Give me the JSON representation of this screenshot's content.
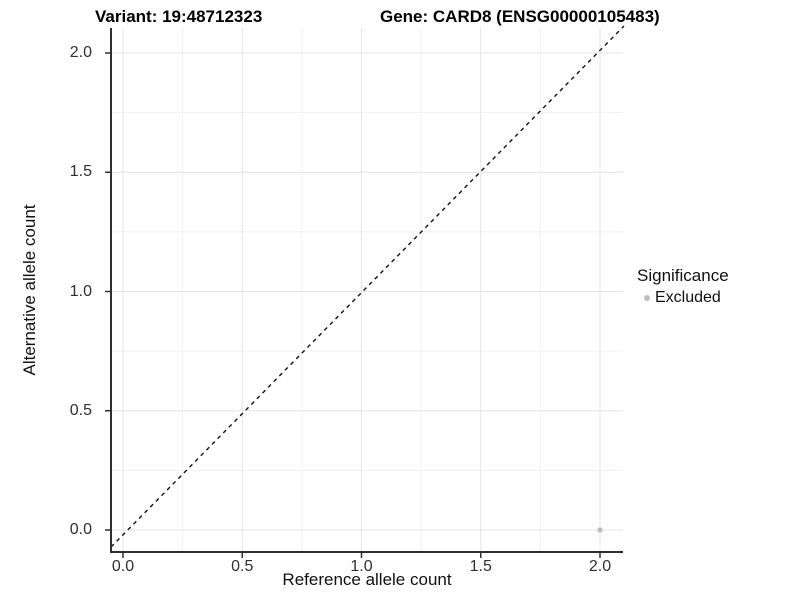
{
  "header": {
    "variant_title": "Variant: 19:48712323",
    "gene_title": "Gene: CARD8 (ENSG00000105483)"
  },
  "axes": {
    "x": {
      "label": "Reference allele count",
      "tick_labels": [
        "0.0",
        "0.5",
        "1.0",
        "1.5",
        "2.0"
      ]
    },
    "y": {
      "label": "Alternative allele count",
      "tick_labels": [
        "0.0",
        "0.5",
        "1.0",
        "1.5",
        "2.0"
      ]
    }
  },
  "legend": {
    "title": "Significance",
    "items": [
      {
        "label": "Excluded",
        "color": "#bdbdbd"
      }
    ]
  },
  "colors": {
    "grid_major": "#e4e4e4",
    "grid_minor": "#f1f1f1",
    "axis_line": "#2f2f2f",
    "tick_mark": "#2f2f2f",
    "reference_line": "#111111",
    "point": "#bdbdbd",
    "background": "#ffffff"
  },
  "chart_data": {
    "type": "scatter",
    "title": "Variant: 19:48712323   Gene: CARD8 (ENSG00000105483)",
    "xlabel": "Reference allele count",
    "ylabel": "Alternative allele count",
    "xlim": [
      -0.05,
      2.1
    ],
    "ylim": [
      -0.1,
      2.1
    ],
    "x_ticks": [
      0.0,
      0.5,
      1.0,
      1.5,
      2.0
    ],
    "y_ticks": [
      0.0,
      0.5,
      1.0,
      1.5,
      2.0
    ],
    "grid": "major+minor",
    "legend_position": "right",
    "series": [
      {
        "name": "Excluded",
        "color": "#bdbdbd",
        "points": [
          [
            2.0,
            0.0
          ]
        ]
      }
    ],
    "reference_line": {
      "type": "identity y=x",
      "style": "dashed",
      "color": "#111111",
      "from": [
        0.0,
        0.0
      ],
      "slope": 1
    }
  }
}
